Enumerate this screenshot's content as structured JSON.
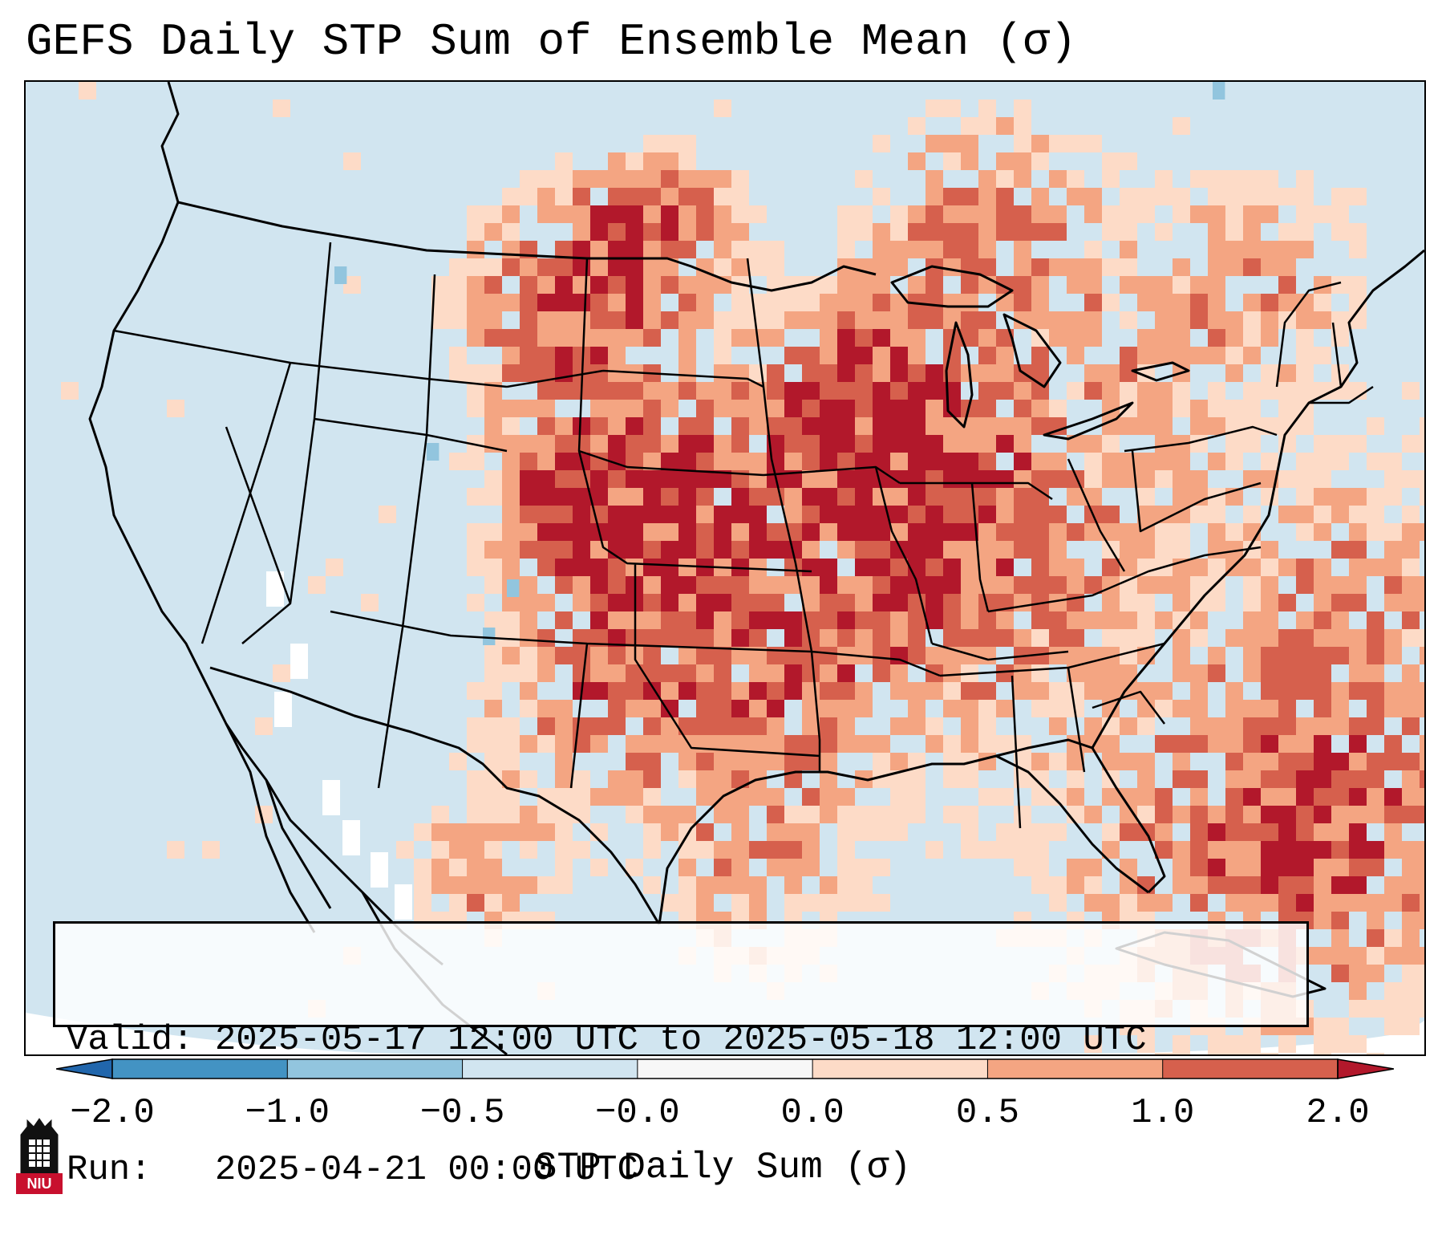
{
  "title": "GEFS Daily STP Sum of Ensemble Mean (σ)",
  "info": {
    "valid_line": "Valid: 2025-05-17 12:00 UTC to 2025-05-18 12:00 UTC",
    "run_line": "Run:   2025-04-21 00:00 UTC"
  },
  "colorbar": {
    "label": "STP Daily Sum (σ)",
    "ticks": [
      "−2.0",
      "−1.0",
      "−0.5",
      "−0.0",
      "0.0",
      "0.5",
      "1.0",
      "2.0"
    ],
    "bins": [
      {
        "from": -2.0,
        "to": -1.0,
        "color": "#4393c3"
      },
      {
        "from": -1.0,
        "to": -0.5,
        "color": "#92c5de"
      },
      {
        "from": -0.5,
        "to": -0.0,
        "color": "#d1e5f0"
      },
      {
        "from": -0.0,
        "to": 0.0,
        "color": "#f7f7f7"
      },
      {
        "from": 0.0,
        "to": 0.5,
        "color": "#fddbc7"
      },
      {
        "from": 0.5,
        "to": 1.0,
        "color": "#f4a582"
      },
      {
        "from": 1.0,
        "to": 2.0,
        "color": "#d6604d"
      }
    ],
    "under_color": "#2166ac",
    "over_color": "#b2182b"
  },
  "colors": {
    "background_field": "#d1e5f0",
    "light_positive": "#fddbc7",
    "mid_positive": "#f4a582",
    "strong_positive": "#d6604d",
    "extreme_positive": "#b2182b",
    "light_negative": "#92c5de",
    "neutral": "#ffffff"
  },
  "logo": {
    "text": "NIU"
  }
}
